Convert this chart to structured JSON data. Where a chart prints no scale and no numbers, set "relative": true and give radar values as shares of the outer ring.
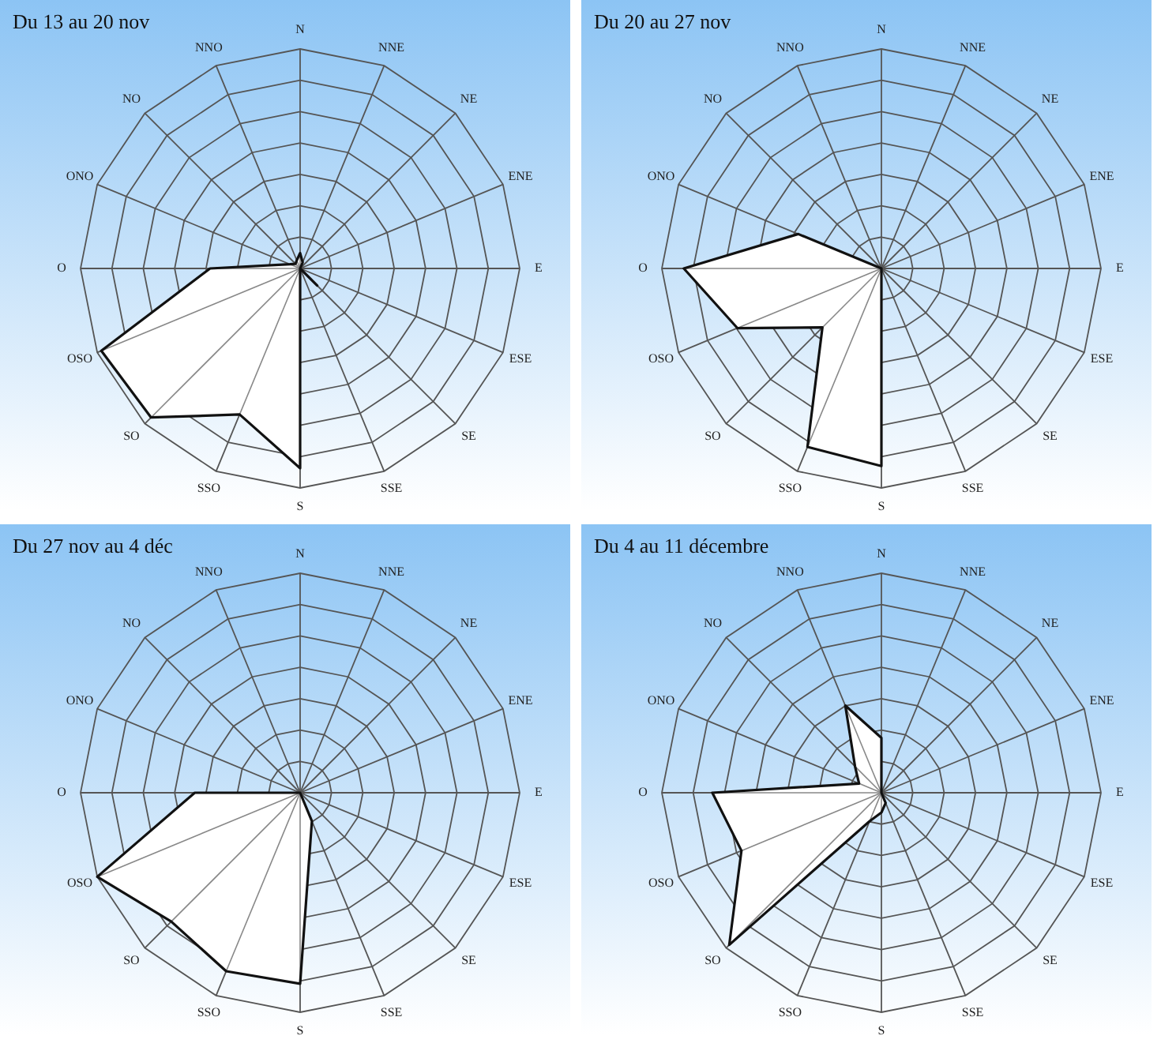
{
  "chart_data": [
    {
      "type": "radar",
      "title": "Du 13 au 20 nov",
      "relative": true,
      "categories": [
        "N",
        "NNE",
        "NE",
        "ENE",
        "E",
        "ESE",
        "SE",
        "SSE",
        "S",
        "SSO",
        "SO",
        "OSO",
        "O",
        "ONO",
        "NO",
        "NNO"
      ],
      "series": [
        {
          "color": "#ffffff",
          "values": [
            0.07,
            0.03,
            0,
            0,
            0,
            0,
            0.11,
            0,
            0.91,
            0.72,
            0.96,
            0.98,
            0.41,
            0.05,
            0.03,
            0.04
          ]
        }
      ]
    },
    {
      "type": "radar",
      "title": "Du 20 au 27 nov",
      "relative": true,
      "categories": [
        "N",
        "NNE",
        "NE",
        "ENE",
        "E",
        "ESE",
        "SE",
        "SSE",
        "S",
        "SSO",
        "SO",
        "OSO",
        "O",
        "ONO",
        "NO",
        "NNO"
      ],
      "series": [
        {
          "color": "#ffffff",
          "values": [
            0,
            0,
            0,
            0,
            0,
            0,
            0,
            0,
            0.9,
            0.88,
            0.38,
            0.71,
            0.9,
            0.41,
            0,
            0
          ]
        }
      ]
    },
    {
      "type": "radar",
      "title": "Du 27 nov au 4 déc",
      "relative": true,
      "categories": [
        "N",
        "NNE",
        "NE",
        "ENE",
        "E",
        "ESE",
        "SE",
        "SSE",
        "S",
        "SSO",
        "SO",
        "OSO",
        "O",
        "ONO",
        "NO",
        "NNO"
      ],
      "series": [
        {
          "color": "#ffffff",
          "values": [
            0,
            0,
            0,
            0,
            0,
            0,
            0,
            0.14,
            0.87,
            0.88,
            0.83,
            1,
            0.48,
            0,
            0,
            0
          ]
        }
      ]
    },
    {
      "type": "radar",
      "title": "Du 4 au 11 décembre",
      "relative": true,
      "categories": [
        "N",
        "NNE",
        "NE",
        "ENE",
        "E",
        "ESE",
        "SE",
        "SSE",
        "S",
        "SSO",
        "SO",
        "OSO",
        "O",
        "ONO",
        "NO",
        "NNO"
      ],
      "series": [
        {
          "color": "#ffffff",
          "values": [
            0.25,
            0,
            0,
            0,
            0,
            0,
            0,
            0.05,
            0.09,
            0.14,
            0.98,
            0.69,
            0.77,
            0.11,
            0.17,
            0.43
          ]
        }
      ]
    }
  ]
}
